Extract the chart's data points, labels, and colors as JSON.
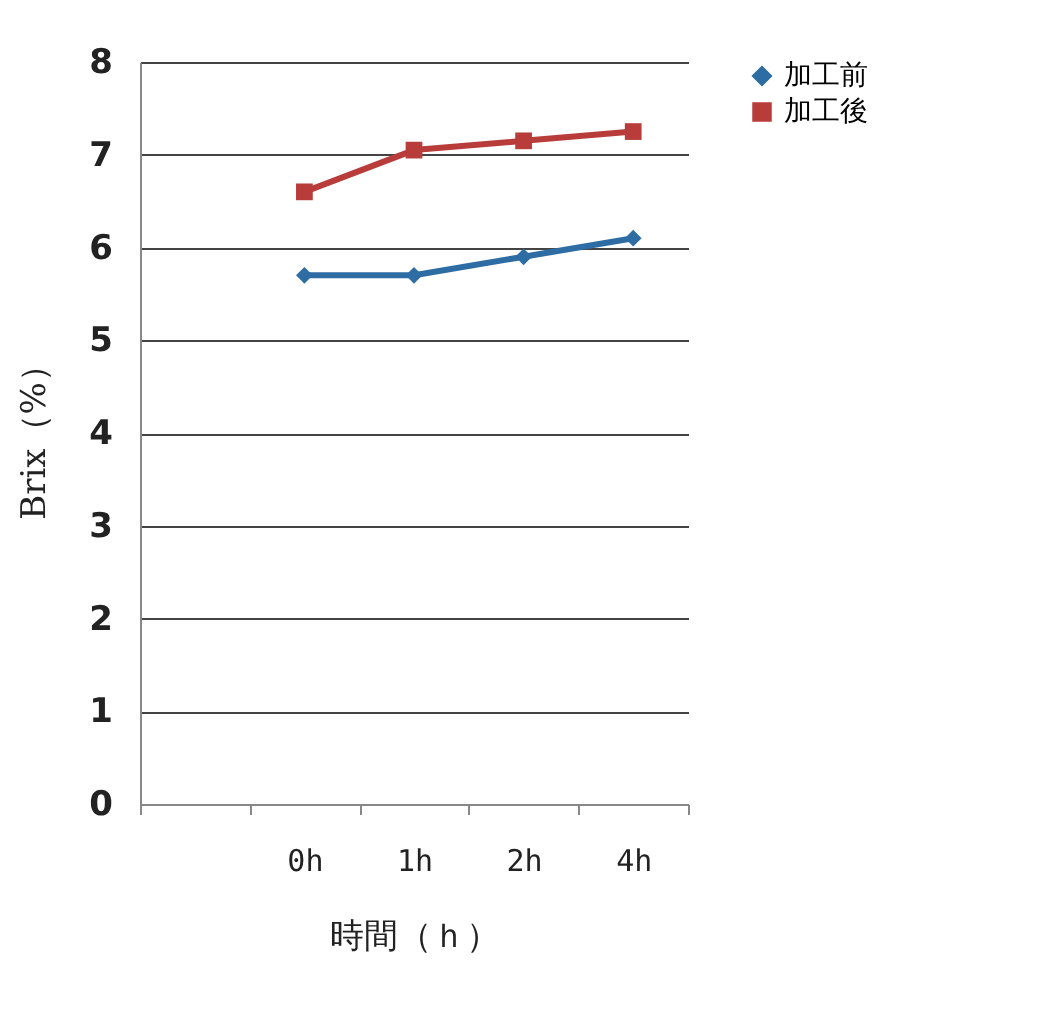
{
  "chart_data": {
    "type": "line",
    "xlabel": "時間（ｈ）",
    "ylabel": "Brix（%）",
    "categories": [
      null,
      "0h",
      "1h",
      "2h",
      "4h"
    ],
    "series": [
      {
        "name": "加工前",
        "color": "#2e6ca4",
        "marker": "diamond",
        "values": [
          null,
          5.7,
          5.7,
          5.9,
          6.1
        ]
      },
      {
        "name": "加工後",
        "color": "#b83c3a",
        "marker": "square",
        "values": [
          null,
          6.6,
          7.05,
          7.15,
          7.25
        ]
      }
    ],
    "ylim": [
      0,
      8
    ],
    "yticks": [
      0,
      1,
      2,
      3,
      4,
      5,
      6,
      7,
      8
    ],
    "grid": "y",
    "legend": "right"
  }
}
